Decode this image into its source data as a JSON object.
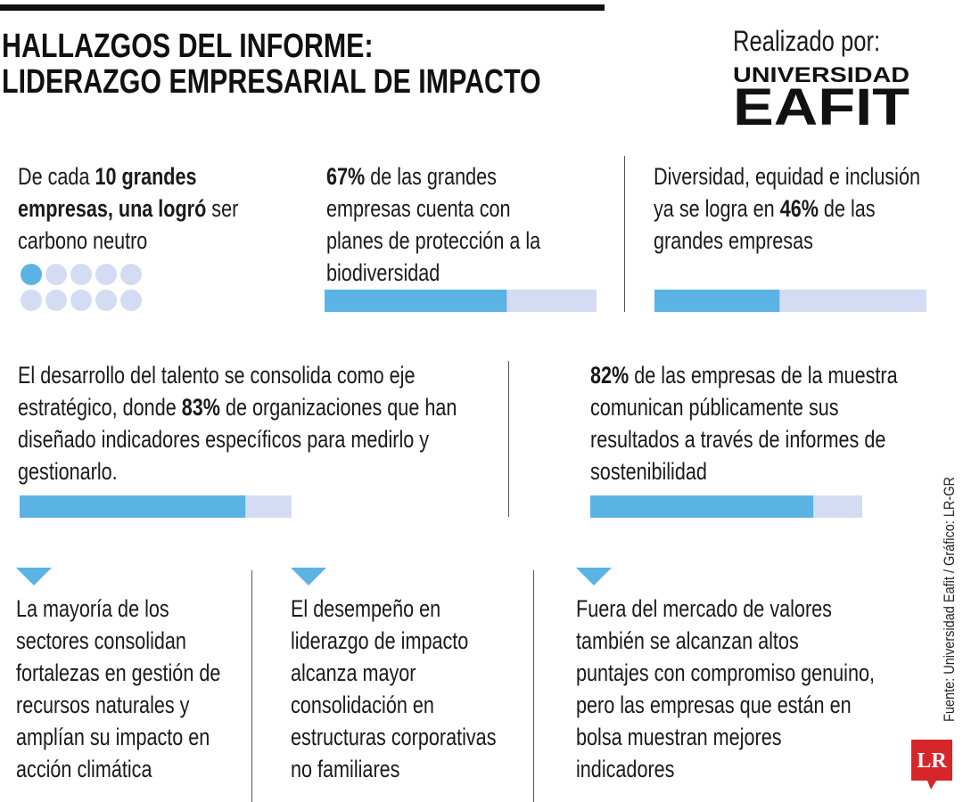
{
  "header": {
    "title_lines": [
      "HALLAZGOS DEL INFORME:",
      "LIDERAZGO EMPRESARIAL DE IMPACTO"
    ],
    "credit": "Realizado por:",
    "logo": [
      "UNIVERSIDAD",
      "EAFIT"
    ]
  },
  "findings": [
    {
      "parts": [
        "De cada ",
        {
          "t": "10 grandes empresas, una logró",
          "b": true
        },
        " ser carbono neutro"
      ],
      "dots": {
        "filled": 1,
        "total": 10
      }
    },
    {
      "parts": [
        {
          "t": "67%",
          "b": true
        },
        " de las grandes empresas cuenta con planes de protección a la biodiversidad"
      ],
      "value": 67
    },
    {
      "parts": [
        "Diversidad, equidad e inclusión ya se logra en ",
        {
          "t": "46%",
          "b": true
        },
        " de las grandes empresas"
      ],
      "value": 46
    },
    {
      "parts": [
        "El desarrollo del talento se consolida como eje estratégico, donde ",
        {
          "t": "83%",
          "b": true
        },
        " de organizaciones que han diseñado indicadores específicos para medirlo y gestionarlo."
      ],
      "value": 83
    },
    {
      "parts": [
        {
          "t": "82%",
          "b": true
        },
        " de las empresas de la muestra comunican públicamente sus resultados a través de informes de sostenibilidad"
      ],
      "value": 82
    }
  ],
  "notes": [
    "La mayoría de los sectores consolidan fortalezas en gestión de recursos naturales y amplían su impacto en acción climática",
    "El desempeño en liderazgo de impacto alcanza mayor consolidación en estructuras corporativas no familiares",
    "Fuera del mercado de valores también se alcanzan altos puntajes con compromiso genuino, pero las empresas que están en bolsa muestran mejores indicadores"
  ],
  "source": "Fuente: Universidad Eafit / Gráfico: LR-GR",
  "brand": "LR"
}
